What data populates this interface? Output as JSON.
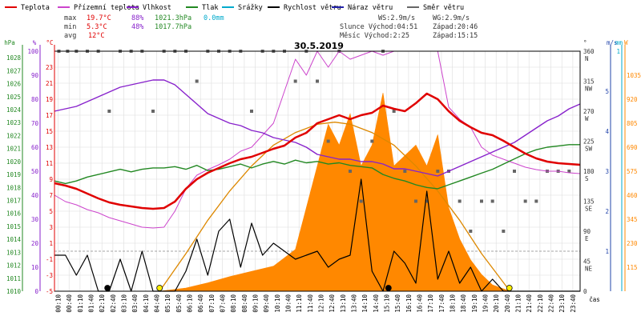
{
  "chart_data": {
    "type": "line",
    "title": "30.5.2019",
    "legend": [
      {
        "name": "Teplota",
        "color": "#e00000"
      },
      {
        "name": "Přízemní teplota",
        "color": "#cc44cc"
      },
      {
        "name": "Vlhkost",
        "color": "#8822cc"
      },
      {
        "name": "Tlak",
        "color": "#228822"
      },
      {
        "name": "Srážky",
        "color": "#00aacc"
      },
      {
        "name": "Rychlost větru",
        "color": "#000000"
      },
      {
        "name": "Náraz větru",
        "color": "#2222aa"
      },
      {
        "name": "Směr větru",
        "color": "#666666"
      }
    ],
    "stats": {
      "max_label": "max",
      "min_label": "min",
      "avg_label": "avg",
      "max_temp": "19.7°C",
      "max_hum": "88%",
      "max_press": "1021.3hPa",
      "max_rain": "0.0mm",
      "min_temp": "5.3°C",
      "min_hum": "48%",
      "min_press": "1017.7hPa",
      "avg_temp": "12°C",
      "ws": "WS:2.9m/s",
      "wg": "WG:2.9m/s",
      "sun": "Slunce Východ:04:51",
      "sun_set": "Západ:20:46",
      "moon": "Měsíc Východ:2:25",
      "moon_set": "Západ:15:15"
    },
    "axes": {
      "hpa_label": "hPa",
      "pct_label": "%",
      "temp_label": "°C",
      "deg_label": "°",
      "ms_label": "m/s",
      "mm_label": "mm",
      "w_label": "W",
      "time_label": "čas",
      "hpa_ticks": [
        "1028",
        "1027",
        "1026",
        "1025",
        "1024",
        "1023",
        "1022",
        "1021",
        "1020",
        "1019",
        "1018",
        "1017",
        "1016",
        "1015",
        "1014",
        "1013",
        "1012",
        "1011",
        "1010"
      ],
      "pct_ticks": [
        "100",
        "90",
        "80",
        "70",
        "60",
        "50",
        "40",
        "30",
        "20",
        "10",
        "0"
      ],
      "temp_ticks": [
        "23",
        "21",
        "19",
        "17",
        "15",
        "13",
        "11",
        "9",
        "7",
        "5",
        "3",
        "1",
        "-1",
        "-3",
        "-5"
      ],
      "dir_ticks": [
        "360\nN",
        "315\nNW",
        "270\nW",
        "225\nSW",
        "180\nS",
        "135\nSE",
        "90\nE",
        "45\nNE",
        "0"
      ],
      "ms_ticks": [
        "1",
        "2",
        "3",
        "4",
        "5"
      ],
      "mm_ticks": [
        "1"
      ],
      "w_ticks": [
        "1035",
        "920",
        "805",
        "690",
        "575",
        "460",
        "345",
        "230",
        "115"
      ],
      "x_ticks": [
        "00:10",
        "00:40",
        "01:10",
        "01:40",
        "02:10",
        "02:40",
        "03:10",
        "03:40",
        "04:10",
        "04:40",
        "05:10",
        "05:40",
        "06:10",
        "06:40",
        "07:10",
        "07:40",
        "08:10",
        "08:40",
        "09:10",
        "09:40",
        "10:10",
        "10:40",
        "11:10",
        "11:40",
        "12:10",
        "12:40",
        "13:10",
        "13:40",
        "14:10",
        "14:40",
        "15:10",
        "15:40",
        "16:10",
        "16:40",
        "17:10",
        "17:40",
        "18:10",
        "18:40",
        "19:10",
        "19:40",
        "20:10",
        "20:40",
        "21:10",
        "21:40",
        "22:10",
        "22:40",
        "23:10",
        "23:40"
      ],
      "temp_range": [
        -5,
        25
      ],
      "pct_range": [
        0,
        100
      ],
      "hpa_range": [
        1010,
        1028.5
      ],
      "wind_range": [
        0,
        6
      ],
      "solar_range": [
        0,
        1150
      ],
      "dir_range": [
        0,
        360
      ]
    },
    "series": [
      {
        "name": "Teplota",
        "x_hours": [
          0,
          0.5,
          1,
          1.5,
          2,
          2.5,
          3,
          3.5,
          4,
          4.5,
          5,
          5.5,
          6,
          6.5,
          7,
          7.5,
          8,
          8.5,
          9,
          9.5,
          10,
          10.5,
          11,
          11.5,
          12,
          12.5,
          13,
          13.5,
          14,
          14.5,
          15,
          15.5,
          16,
          16.5,
          17,
          17.5,
          18,
          18.5,
          19,
          19.5,
          20,
          20.5,
          21,
          21.5,
          22,
          22.5,
          23,
          23.5,
          24
        ],
        "values": [
          8.5,
          8.2,
          7.8,
          7.2,
          6.6,
          6.1,
          5.8,
          5.6,
          5.4,
          5.3,
          5.4,
          6.2,
          7.8,
          9.0,
          9.8,
          10.4,
          11.0,
          11.5,
          11.8,
          12.3,
          12.8,
          13.2,
          14.2,
          14.8,
          16.0,
          16.5,
          17.0,
          16.5,
          17.0,
          17.3,
          18.2,
          17.8,
          17.5,
          18.5,
          19.7,
          19.0,
          17.5,
          16.3,
          15.5,
          14.8,
          14.5,
          13.8,
          13.0,
          12.2,
          11.6,
          11.2,
          11.0,
          10.9,
          10.8
        ]
      },
      {
        "name": "Přízemní teplota",
        "x_hours": [
          0,
          0.5,
          1,
          1.5,
          2,
          2.5,
          3,
          3.5,
          4,
          4.5,
          5,
          5.5,
          6,
          6.5,
          7,
          7.5,
          8,
          8.5,
          9,
          9.5,
          10,
          10.5,
          11,
          11.5,
          12,
          12.5,
          13,
          13.5,
          14,
          14.5,
          15,
          15.5,
          16,
          16.5,
          17,
          17.5,
          18,
          18.5,
          19,
          19.5,
          20,
          20.5,
          21,
          21.5,
          22,
          22.5,
          23,
          23.5,
          24
        ],
        "values": [
          7.0,
          6.2,
          5.8,
          5.2,
          4.8,
          4.2,
          3.8,
          3.4,
          3.0,
          2.9,
          3.0,
          5.0,
          7.8,
          9.5,
          10.2,
          10.8,
          11.5,
          12.5,
          13.0,
          14.5,
          16.0,
          20.0,
          24.0,
          22.0,
          25.0,
          23.0,
          25.0,
          24.0,
          24.5,
          25.0,
          24.5,
          25.0,
          25.0,
          25.0,
          25.0,
          25.0,
          18.0,
          16.5,
          15.5,
          13.0,
          12.0,
          11.5,
          11.0,
          10.5,
          10.2,
          10.0,
          10.0,
          9.8,
          9.7
        ]
      },
      {
        "name": "Vlhkost",
        "x_hours": [
          0,
          0.5,
          1,
          1.5,
          2,
          2.5,
          3,
          3.5,
          4,
          4.5,
          5,
          5.5,
          6,
          6.5,
          7,
          7.5,
          8,
          8.5,
          9,
          9.5,
          10,
          10.5,
          11,
          11.5,
          12,
          12.5,
          13,
          13.5,
          14,
          14.5,
          15,
          15.5,
          16,
          16.5,
          17,
          17.5,
          18,
          18.5,
          19,
          19.5,
          20,
          20.5,
          21,
          21.5,
          22,
          22.5,
          23,
          23.5,
          24
        ],
        "values": [
          75,
          76,
          77,
          79,
          81,
          83,
          85,
          86,
          87,
          88,
          88,
          86,
          82,
          78,
          74,
          72,
          70,
          69,
          67,
          66,
          64,
          63,
          62,
          60,
          57,
          56,
          55,
          55,
          54,
          54,
          53,
          51,
          51,
          50,
          49,
          48,
          50,
          52,
          54,
          56,
          58,
          60,
          62,
          65,
          68,
          71,
          73,
          76,
          78
        ]
      },
      {
        "name": "Tlak",
        "x_hours": [
          0,
          0.5,
          1,
          1.5,
          2,
          2.5,
          3,
          3.5,
          4,
          4.5,
          5,
          5.5,
          6,
          6.5,
          7,
          7.5,
          8,
          8.5,
          9,
          9.5,
          10,
          10.5,
          11,
          11.5,
          12,
          12.5,
          13,
          13.5,
          14,
          14.5,
          15,
          15.5,
          16,
          16.5,
          17,
          17.5,
          18,
          18.5,
          19,
          19.5,
          20,
          20.5,
          21,
          21.5,
          22,
          22.5,
          23,
          23.5,
          24
        ],
        "values": [
          1018.5,
          1018.3,
          1018.5,
          1018.8,
          1019.0,
          1019.2,
          1019.4,
          1019.2,
          1019.4,
          1019.5,
          1019.5,
          1019.6,
          1019.4,
          1019.7,
          1019.3,
          1019.4,
          1019.6,
          1019.8,
          1019.5,
          1019.8,
          1020.0,
          1019.8,
          1020.1,
          1019.9,
          1020.0,
          1019.8,
          1019.9,
          1019.7,
          1019.6,
          1019.5,
          1019.0,
          1018.7,
          1018.5,
          1018.2,
          1018.0,
          1017.9,
          1018.2,
          1018.5,
          1018.8,
          1019.1,
          1019.4,
          1019.8,
          1020.2,
          1020.6,
          1020.9,
          1021.1,
          1021.2,
          1021.3,
          1021.3
        ]
      },
      {
        "name": "Rychlost větru",
        "x_hours": [
          0,
          0.5,
          1,
          1.5,
          2,
          2.5,
          3,
          3.5,
          4,
          4.5,
          5,
          5.5,
          6,
          6.5,
          7,
          7.5,
          8,
          8.5,
          9,
          9.5,
          10,
          10.5,
          11,
          11.5,
          12,
          12.5,
          13,
          13.5,
          14,
          14.5,
          15,
          15.5,
          16,
          16.5,
          17,
          17.5,
          18,
          18.5,
          19,
          19.5,
          20,
          20.5,
          21,
          21.5,
          22,
          22.5,
          23,
          23.5,
          24
        ],
        "values": [
          0.9,
          0.9,
          0.4,
          0.9,
          0.0,
          0.0,
          0.8,
          0.0,
          1.0,
          0.0,
          0.0,
          0.0,
          0.5,
          1.3,
          0.4,
          1.5,
          1.8,
          0.6,
          1.7,
          0.9,
          1.2,
          1.0,
          0.8,
          0.9,
          1.0,
          0.6,
          0.8,
          0.9,
          2.8,
          0.5,
          0.0,
          1.0,
          0.7,
          0.2,
          2.5,
          0.3,
          1.0,
          0.2,
          0.6,
          0.0,
          0.3,
          0.0,
          0.0,
          0.0,
          0.0,
          0.0,
          0.0,
          0.0,
          0.0
        ]
      },
      {
        "name": "Solar",
        "x_hours": [
          4.8,
          6,
          7,
          8,
          9,
          10,
          11,
          12,
          12.5,
          13,
          13.5,
          14,
          14.5,
          15,
          15.5,
          16,
          16.5,
          17,
          17.5,
          18,
          18.5,
          19,
          19.5,
          20,
          20.8
        ],
        "values": [
          0,
          15,
          40,
          70,
          95,
          120,
          200,
          600,
          800,
          700,
          850,
          600,
          700,
          950,
          600,
          650,
          700,
          600,
          750,
          400,
          250,
          150,
          80,
          30,
          0
        ]
      },
      {
        "name": "Sun",
        "x_hours": [
          4.8,
          6,
          7,
          8,
          9,
          10,
          11,
          12,
          12.8,
          13.5,
          14.5,
          15.5,
          16.5,
          17.5,
          18.5,
          19.5,
          20.8
        ],
        "values": [
          0,
          180,
          340,
          480,
          600,
          700,
          760,
          800,
          810,
          800,
          760,
          700,
          600,
          480,
          340,
          180,
          0
        ]
      }
    ],
    "wind_dir_points": {
      "x_hours": [
        0.2,
        0.6,
        1.0,
        1.5,
        2.0,
        2.5,
        3.0,
        3.5,
        4.0,
        4.5,
        5.0,
        5.5,
        6.0,
        6.5,
        7.0,
        7.5,
        8.0,
        8.5,
        9.0,
        9.5,
        10.0,
        10.5,
        11.0,
        11.5,
        12.0,
        12.5,
        13.0,
        13.5,
        14.0,
        14.5,
        15.0,
        15.5,
        16.0,
        16.5,
        17.0,
        17.5,
        18.0,
        18.5,
        19.0,
        19.5,
        20.0,
        20.5,
        21.0,
        21.5,
        22.0,
        22.5,
        23.0,
        23.5
      ],
      "values": [
        360,
        360,
        360,
        360,
        360,
        270,
        360,
        360,
        360,
        270,
        360,
        360,
        360,
        315,
        360,
        360,
        360,
        360,
        270,
        360,
        360,
        360,
        315,
        360,
        315,
        225,
        360,
        180,
        135,
        225,
        360,
        270,
        180,
        135,
        135,
        180,
        180,
        135,
        90,
        135,
        135,
        90,
        180,
        135,
        135,
        180,
        180,
        180
      ]
    }
  }
}
